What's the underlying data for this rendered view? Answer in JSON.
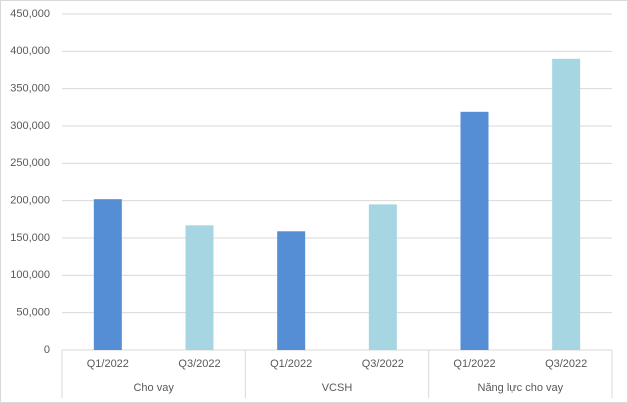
{
  "chart_data": {
    "type": "bar",
    "groups": [
      {
        "name": "Cho vay",
        "categories": [
          "Q1/2022",
          "Q3/2022"
        ],
        "values": [
          202000,
          167000
        ]
      },
      {
        "name": "VCSH",
        "categories": [
          "Q1/2022",
          "Q3/2022"
        ],
        "values": [
          159000,
          195000
        ]
      },
      {
        "name": "Năng lực cho vay",
        "categories": [
          "Q1/2022",
          "Q3/2022"
        ],
        "values": [
          319000,
          390000
        ]
      }
    ],
    "colors": [
      "#558ed5",
      "#a5d6e2"
    ],
    "ylim": [
      0,
      450000
    ],
    "yticks": [
      0,
      {
        "value": 50000,
        "label": "50,000"
      },
      {
        "value": 100000,
        "label": "100,000"
      },
      {
        "value": 150000,
        "label": "150,000"
      },
      {
        "value": 200000,
        "label": "200,000"
      },
      {
        "value": 250000,
        "label": "250,000"
      },
      {
        "value": 300000,
        "label": "300,000"
      },
      {
        "value": 350000,
        "label": "350,000"
      },
      {
        "value": 400000,
        "label": "400,000"
      },
      {
        "value": 450000,
        "label": "450,000"
      }
    ],
    "grid": true
  }
}
